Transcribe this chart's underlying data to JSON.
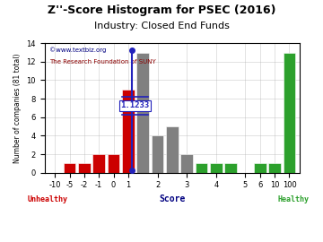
{
  "title": "Z''-Score Histogram for PSEC (2016)",
  "subtitle": "Industry: Closed End Funds",
  "watermark1": "©www.textbiz.org",
  "watermark2": "The Research Foundation of SUNY",
  "xlabel": "Score",
  "ylabel": "Number of companies (81 total)",
  "psec_score": 1.1233,
  "psec_label": "1.1233",
  "bar_centers": [
    -10,
    -5,
    -2,
    -1,
    0,
    1,
    1.5,
    2,
    2.5,
    3,
    3.5,
    4,
    4.5,
    5,
    6,
    10,
    100
  ],
  "bar_heights": [
    0,
    1,
    1,
    2,
    2,
    9,
    13,
    4,
    5,
    2,
    1,
    1,
    1,
    0,
    1,
    1,
    13
  ],
  "bar_colors": [
    "#cc0000",
    "#cc0000",
    "#cc0000",
    "#cc0000",
    "#cc0000",
    "#cc0000",
    "#808080",
    "#808080",
    "#808080",
    "#808080",
    "#2ca02c",
    "#2ca02c",
    "#2ca02c",
    "#2ca02c",
    "#2ca02c",
    "#2ca02c",
    "#2ca02c"
  ],
  "xtick_labels": [
    "-10",
    "-5",
    "-2",
    "-1",
    "0",
    "1",
    "2",
    "3",
    "4",
    "5",
    "6",
    "10",
    "100"
  ],
  "xtick_score_positions": [
    -10,
    -5,
    -2,
    -1,
    0,
    1,
    2,
    3,
    4,
    5,
    6,
    10,
    100
  ],
  "ytick_positions": [
    0,
    2,
    4,
    6,
    8,
    10,
    12,
    14
  ],
  "ylim": [
    0,
    14
  ],
  "unhealthy_color": "#cc0000",
  "healthy_color": "#2ca02c",
  "score_label_color": "#2222bb",
  "background_color": "#ffffff",
  "grid_color": "#aaaaaa",
  "title_fontsize": 9,
  "subtitle_fontsize": 8,
  "axis_fontsize": 7,
  "tick_fontsize": 6
}
